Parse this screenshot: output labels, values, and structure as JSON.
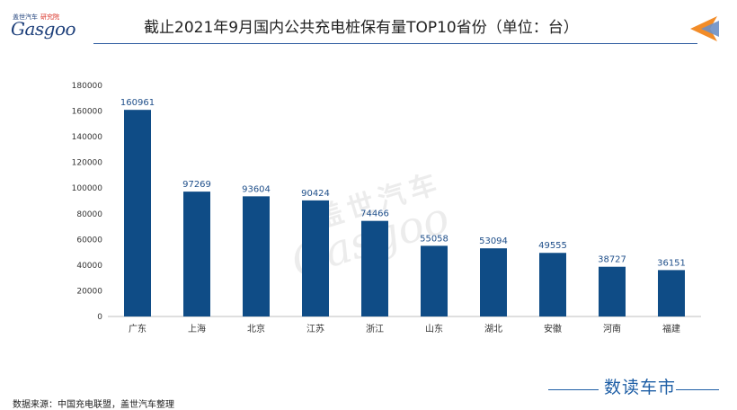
{
  "header": {
    "logo_top": "盖世汽车",
    "logo_highlight": "研究院",
    "logo_main": "Gasgoo",
    "title": "截止2021年9月国内公共充电桩保有量TOP10省份（单位：台）"
  },
  "watermark": {
    "cn": "盖世汽车",
    "en": "Gasgoo"
  },
  "footer": {
    "source": "数据来源：中国充电联盟，盖世汽车整理",
    "brand": "数读车市"
  },
  "colors": {
    "bar": "#0f4c86",
    "accent_orange": "#f28c28",
    "accent_blue": "#2c5aa0"
  },
  "chart_data": {
    "type": "bar",
    "title": "截止2021年9月国内公共充电桩保有量TOP10省份（单位：台）",
    "categories": [
      "广东",
      "上海",
      "北京",
      "江苏",
      "浙江",
      "山东",
      "湖北",
      "安徽",
      "河南",
      "福建"
    ],
    "values": [
      160961,
      97269,
      93604,
      90424,
      74466,
      55058,
      53094,
      49555,
      38727,
      36151
    ],
    "ylim": [
      0,
      180000
    ],
    "yticks": [
      0,
      20000,
      40000,
      60000,
      80000,
      100000,
      120000,
      140000,
      160000,
      180000
    ],
    "grid": false,
    "legend": "none",
    "data_labels": true
  }
}
